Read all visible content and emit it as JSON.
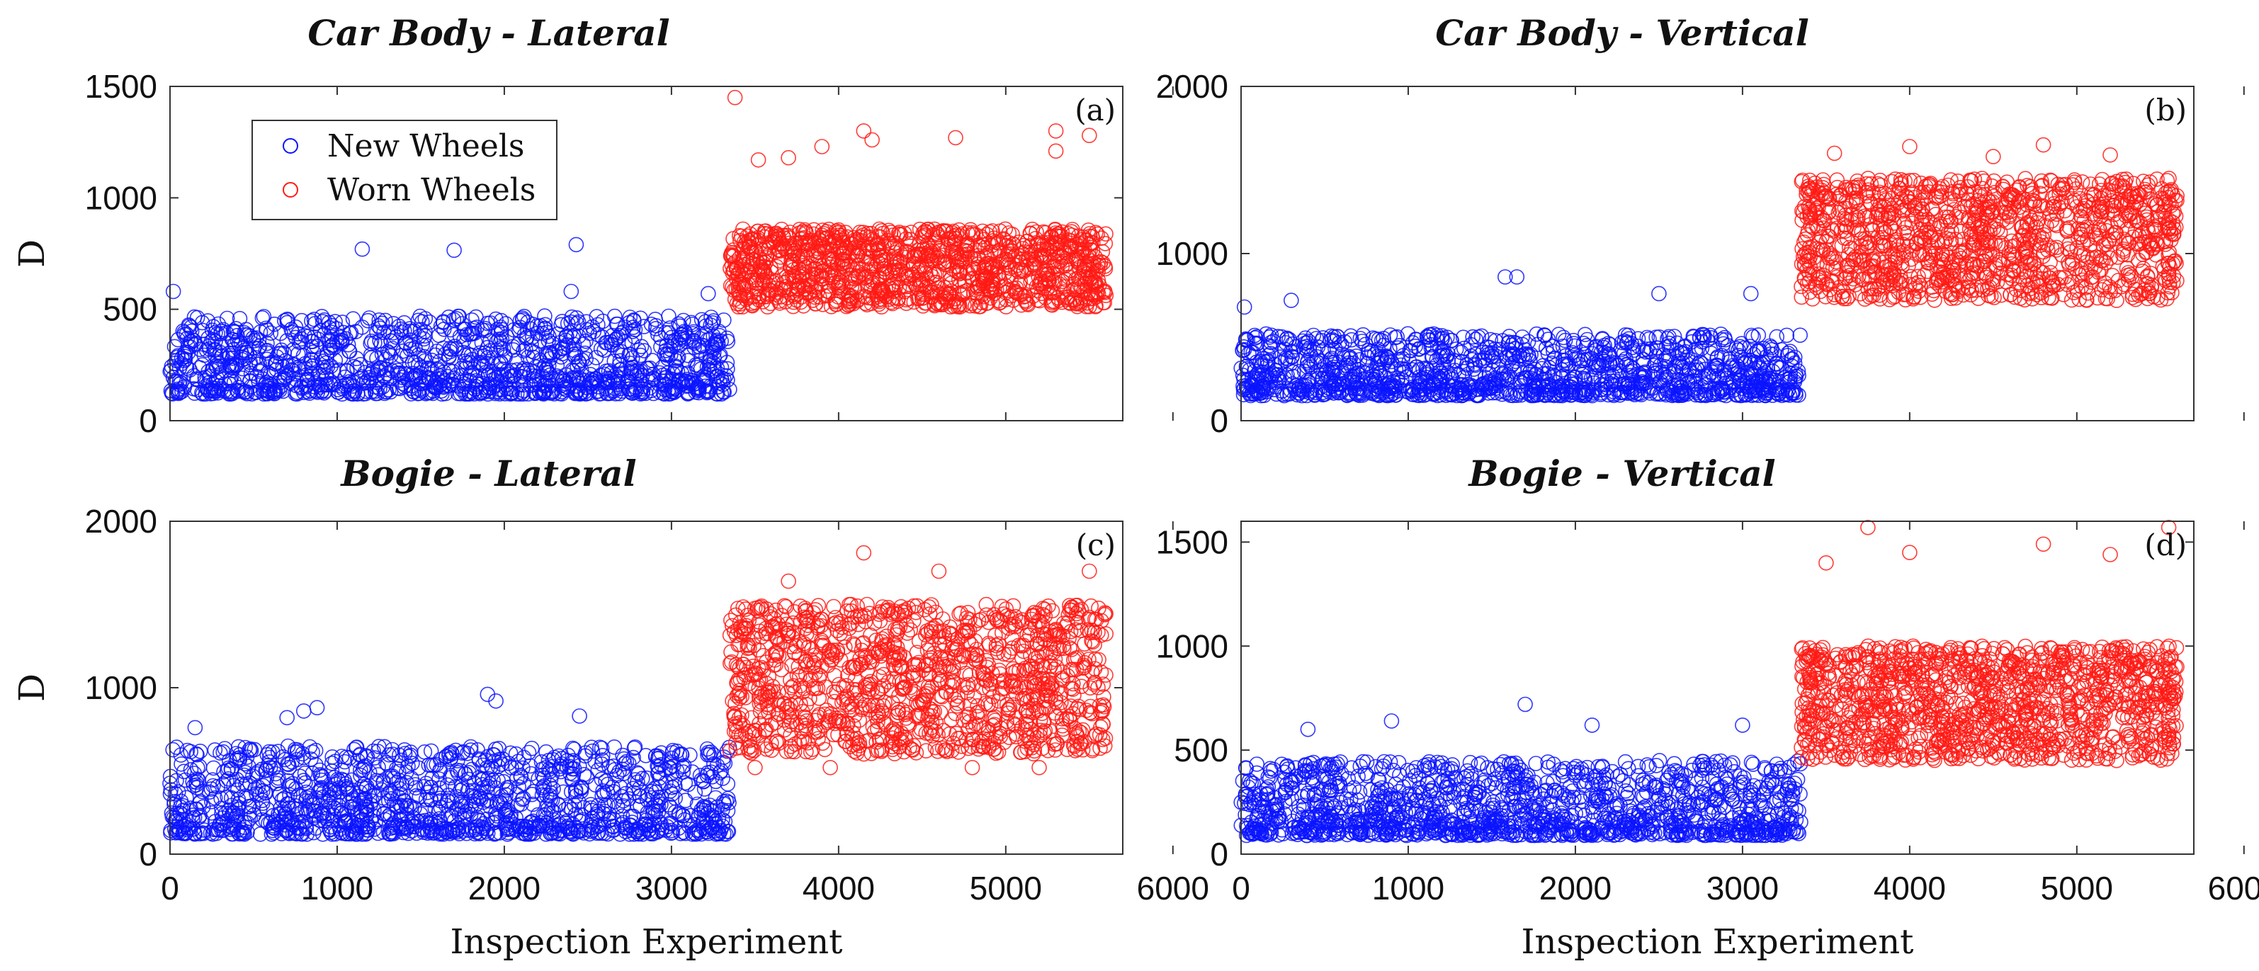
{
  "colors": {
    "new": "#0a14ff",
    "worn": "#ff1a14"
  },
  "legend": [
    {
      "label": "New Wheels",
      "series": "new"
    },
    {
      "label": "Worn Wheels",
      "series": "worn"
    }
  ],
  "chart_data": [
    {
      "type": "scatter",
      "panel": "(a)",
      "title": "Car Body - Lateral",
      "xlabel": "",
      "ylabel": "D",
      "xlim": [
        0,
        5700
      ],
      "ylim": [
        0,
        1500
      ],
      "x_ticks": [
        0,
        1000,
        2000,
        3000,
        4000,
        5000,
        6000
      ],
      "x_tick_labels": [],
      "y_ticks": [
        0,
        500,
        1000,
        1500
      ],
      "y_tick_labels": [
        "0",
        "500",
        "1000",
        "1500"
      ],
      "legend": "top-left",
      "series": [
        {
          "name": "New Wheels",
          "x_range": [
            0,
            3350
          ],
          "typical_range": [
            120,
            470
          ],
          "outliers": [
            [
              20,
              580
            ],
            [
              1150,
              770
            ],
            [
              1700,
              765
            ],
            [
              2430,
              790
            ],
            [
              2400,
              580
            ],
            [
              3220,
              570
            ]
          ]
        },
        {
          "name": "Worn Wheels",
          "x_range": [
            3350,
            5600
          ],
          "typical_range": [
            510,
            860
          ],
          "outliers": [
            [
              3380,
              1450
            ],
            [
              3520,
              1170
            ],
            [
              3700,
              1180
            ],
            [
              4150,
              1300
            ],
            [
              4700,
              1270
            ],
            [
              5300,
              1210
            ],
            [
              5500,
              1280
            ],
            [
              5300,
              1300
            ],
            [
              4200,
              1260
            ],
            [
              3900,
              1230
            ]
          ]
        }
      ]
    },
    {
      "type": "scatter",
      "panel": "(b)",
      "title": "Car Body - Vertical",
      "xlabel": "",
      "ylabel": "",
      "xlim": [
        0,
        5700
      ],
      "ylim": [
        0,
        2000
      ],
      "x_ticks": [
        0,
        1000,
        2000,
        3000,
        4000,
        5000,
        6000
      ],
      "x_tick_labels": [],
      "y_ticks": [
        0,
        1000,
        2000
      ],
      "y_tick_labels": [
        "0",
        "1000",
        "2000"
      ],
      "series": [
        {
          "name": "New Wheels",
          "x_range": [
            0,
            3350
          ],
          "typical_range": [
            150,
            520
          ],
          "outliers": [
            [
              20,
              680
            ],
            [
              1580,
              860
            ],
            [
              1650,
              860
            ],
            [
              2500,
              760
            ],
            [
              3050,
              760
            ],
            [
              300,
              720
            ]
          ]
        },
        {
          "name": "Worn Wheels",
          "x_range": [
            3350,
            5600
          ],
          "typical_range": [
            720,
            1450
          ],
          "outliers": [
            [
              3550,
              1600
            ],
            [
              4000,
              1640
            ],
            [
              4800,
              1650
            ],
            [
              5200,
              1590
            ],
            [
              4500,
              1580
            ]
          ]
        }
      ]
    },
    {
      "type": "scatter",
      "panel": "(c)",
      "title": "Bogie - Lateral",
      "xlabel": "Inspection Experiment",
      "ylabel": "D",
      "xlim": [
        0,
        5700
      ],
      "ylim": [
        0,
        2000
      ],
      "x_ticks": [
        0,
        1000,
        2000,
        3000,
        4000,
        5000,
        6000
      ],
      "x_tick_labels": [
        "0",
        "1000",
        "2000",
        "3000",
        "4000",
        "5000",
        "6000"
      ],
      "y_ticks": [
        0,
        1000,
        2000
      ],
      "y_tick_labels": [
        "0",
        "1000",
        "2000"
      ],
      "series": [
        {
          "name": "New Wheels",
          "x_range": [
            0,
            3350
          ],
          "typical_range": [
            120,
            650
          ],
          "outliers": [
            [
              800,
              860
            ],
            [
              880,
              880
            ],
            [
              1900,
              960
            ],
            [
              1950,
              920
            ],
            [
              2450,
              830
            ],
            [
              150,
              760
            ],
            [
              700,
              820
            ]
          ]
        },
        {
          "name": "Worn Wheels",
          "x_range": [
            3350,
            5600
          ],
          "typical_range": [
            600,
            1500
          ],
          "outliers": [
            [
              4150,
              1810
            ],
            [
              4600,
              1700
            ],
            [
              5500,
              1700
            ],
            [
              3500,
              520
            ],
            [
              3950,
              520
            ],
            [
              4800,
              520
            ],
            [
              5200,
              520
            ],
            [
              3700,
              1640
            ]
          ]
        }
      ]
    },
    {
      "type": "scatter",
      "panel": "(d)",
      "title": "Bogie - Vertical",
      "xlabel": "Inspection Experiment",
      "ylabel": "",
      "xlim": [
        0,
        5700
      ],
      "ylim": [
        0,
        1600
      ],
      "x_ticks": [
        0,
        1000,
        2000,
        3000,
        4000,
        5000,
        6000
      ],
      "x_tick_labels": [
        "0",
        "1000",
        "2000",
        "3000",
        "4000",
        "5000",
        "6000"
      ],
      "y_ticks": [
        0,
        500,
        1000,
        1500
      ],
      "y_tick_labels": [
        "0",
        "500",
        "1000",
        "1500"
      ],
      "series": [
        {
          "name": "New Wheels",
          "x_range": [
            0,
            3350
          ],
          "typical_range": [
            90,
            450
          ],
          "outliers": [
            [
              1700,
              720
            ],
            [
              900,
              640
            ],
            [
              2100,
              620
            ],
            [
              3000,
              620
            ],
            [
              400,
              600
            ]
          ]
        },
        {
          "name": "Worn Wheels",
          "x_range": [
            3350,
            5600
          ],
          "typical_range": [
            450,
            1000
          ],
          "outliers": [
            [
              3750,
              1570
            ],
            [
              5550,
              1570
            ],
            [
              4000,
              1450
            ],
            [
              4800,
              1490
            ],
            [
              3500,
              1400
            ],
            [
              5200,
              1440
            ]
          ]
        }
      ]
    }
  ]
}
